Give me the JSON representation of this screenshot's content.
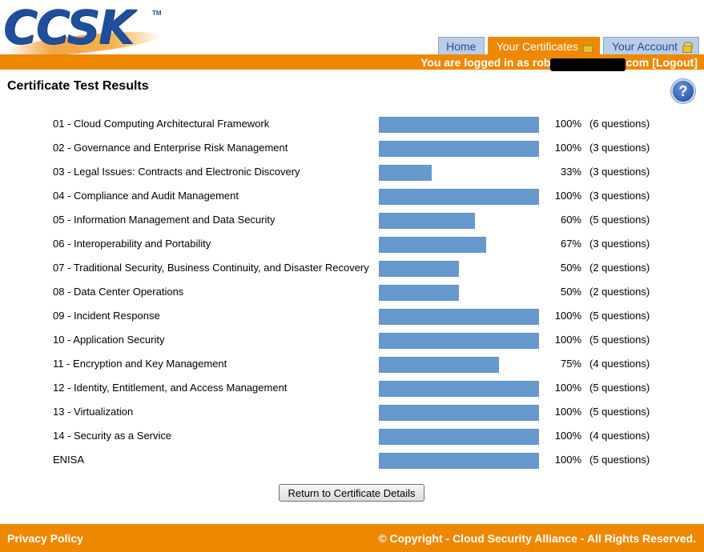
{
  "header": {
    "logo_text": "CCSK",
    "logo_tm": "TM",
    "tabs": [
      {
        "label": "Home",
        "active": false,
        "locked": false
      },
      {
        "label": "Your Certificates",
        "active": true,
        "locked": true
      },
      {
        "label": "Your Account",
        "active": false,
        "locked": true
      }
    ],
    "login_prefix": "You are logged in as rob",
    "login_suffix": "com",
    "logout_label": "[Logout]"
  },
  "main": {
    "title": "Certificate Test Results",
    "help_label": "?",
    "results": [
      {
        "label": "01 - Cloud Computing Architectural Framework",
        "percent": 100,
        "percent_text": "100%",
        "questions": "(6 questions)"
      },
      {
        "label": "02 - Governance and Enterprise Risk Management",
        "percent": 100,
        "percent_text": "100%",
        "questions": "(3 questions)"
      },
      {
        "label": "03 - Legal Issues: Contracts and Electronic Discovery",
        "percent": 33,
        "percent_text": "33%",
        "questions": "(3 questions)"
      },
      {
        "label": "04 - Compliance and Audit Management",
        "percent": 100,
        "percent_text": "100%",
        "questions": "(3 questions)"
      },
      {
        "label": "05 - Information Management and Data Security",
        "percent": 60,
        "percent_text": "60%",
        "questions": "(5 questions)"
      },
      {
        "label": "06 - Interoperability and Portability",
        "percent": 67,
        "percent_text": "67%",
        "questions": "(3 questions)"
      },
      {
        "label": "07 - Traditional Security, Business Continuity, and Disaster Recovery",
        "percent": 50,
        "percent_text": "50%",
        "questions": "(2 questions)"
      },
      {
        "label": "08 - Data Center Operations",
        "percent": 50,
        "percent_text": "50%",
        "questions": "(2 questions)"
      },
      {
        "label": "09 - Incident Response",
        "percent": 100,
        "percent_text": "100%",
        "questions": "(5 questions)"
      },
      {
        "label": "10 - Application Security",
        "percent": 100,
        "percent_text": "100%",
        "questions": "(5 questions)"
      },
      {
        "label": "11 - Encryption and Key Management",
        "percent": 75,
        "percent_text": "75%",
        "questions": "(4 questions)"
      },
      {
        "label": "12 - Identity, Entitlement, and Access Management",
        "percent": 100,
        "percent_text": "100%",
        "questions": "(5 questions)"
      },
      {
        "label": "13 - Virtualization",
        "percent": 100,
        "percent_text": "100%",
        "questions": "(5 questions)"
      },
      {
        "label": "14 - Security as a Service",
        "percent": 100,
        "percent_text": "100%",
        "questions": "(4 questions)"
      },
      {
        "label": "ENISA",
        "percent": 100,
        "percent_text": "100%",
        "questions": "(5 questions)"
      }
    ],
    "return_button_label": "Return to Certificate Details"
  },
  "footer": {
    "privacy_label": "Privacy Policy",
    "copyright": "© Copyright - Cloud Security Alliance - All Rights Reserved."
  },
  "colors": {
    "brand_orange": "#ee8800",
    "bar_blue": "#6699cc",
    "logo_blue": "#1f4f9c"
  }
}
